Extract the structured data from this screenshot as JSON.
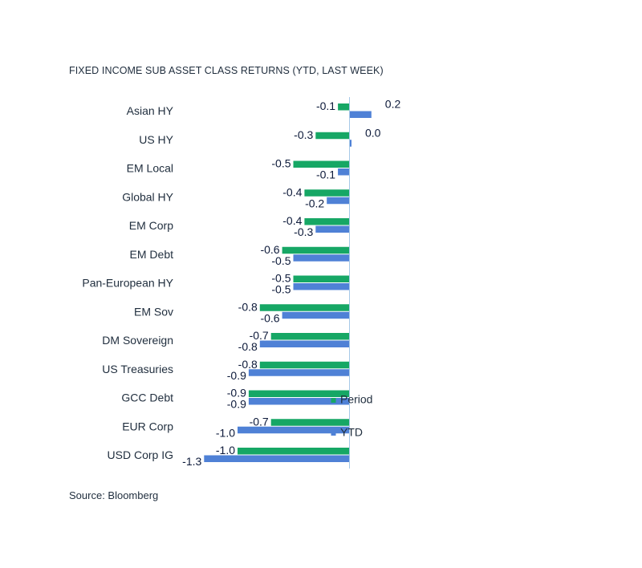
{
  "title": "FIXED INCOME SUB ASSET CLASS RETURNS (YTD, LAST WEEK)",
  "source": "Source: Bloomberg",
  "colors": {
    "period": "#16a765",
    "ytd": "#4f81d6",
    "axis": "#a6c8e8",
    "text": "#1f2d3d",
    "data_label": "#0d1a3a"
  },
  "chart_data": {
    "type": "bar",
    "orientation": "horizontal",
    "categories": [
      "Asian HY",
      "US HY",
      "EM Local",
      "Global HY",
      "EM Corp",
      "EM Debt",
      "Pan-European HY",
      "EM Sov",
      "DM Sovereign",
      "US Treasuries",
      "GCC Debt",
      "EUR Corp",
      "USD Corp IG"
    ],
    "series": [
      {
        "name": "Period",
        "values": [
          -0.1,
          -0.3,
          -0.5,
          -0.4,
          -0.4,
          -0.6,
          -0.5,
          -0.8,
          -0.7,
          -0.8,
          -0.9,
          -0.7,
          -1.0
        ],
        "labels": [
          "-0.1",
          "-0.3",
          "-0.5",
          "-0.4",
          "-0.4",
          "-0.6",
          "-0.5",
          "-0.8",
          "-0.7",
          "-0.8",
          "-0.9",
          "-0.7",
          "-1.0"
        ]
      },
      {
        "name": "YTD",
        "values": [
          0.2,
          0.0,
          -0.1,
          -0.2,
          -0.3,
          -0.5,
          -0.5,
          -0.6,
          -0.8,
          -0.9,
          -0.9,
          -1.0,
          -1.3
        ],
        "labels": [
          "0.2",
          "0.0",
          "-0.1",
          "-0.2",
          "-0.3",
          "-0.5",
          "-0.5",
          "-0.6",
          "-0.8",
          "-0.9",
          "-0.9",
          "-1.0",
          "-1.3"
        ]
      }
    ],
    "xlim": [
      -1.3,
      0.2
    ],
    "grid": false,
    "legend_position": "right"
  }
}
